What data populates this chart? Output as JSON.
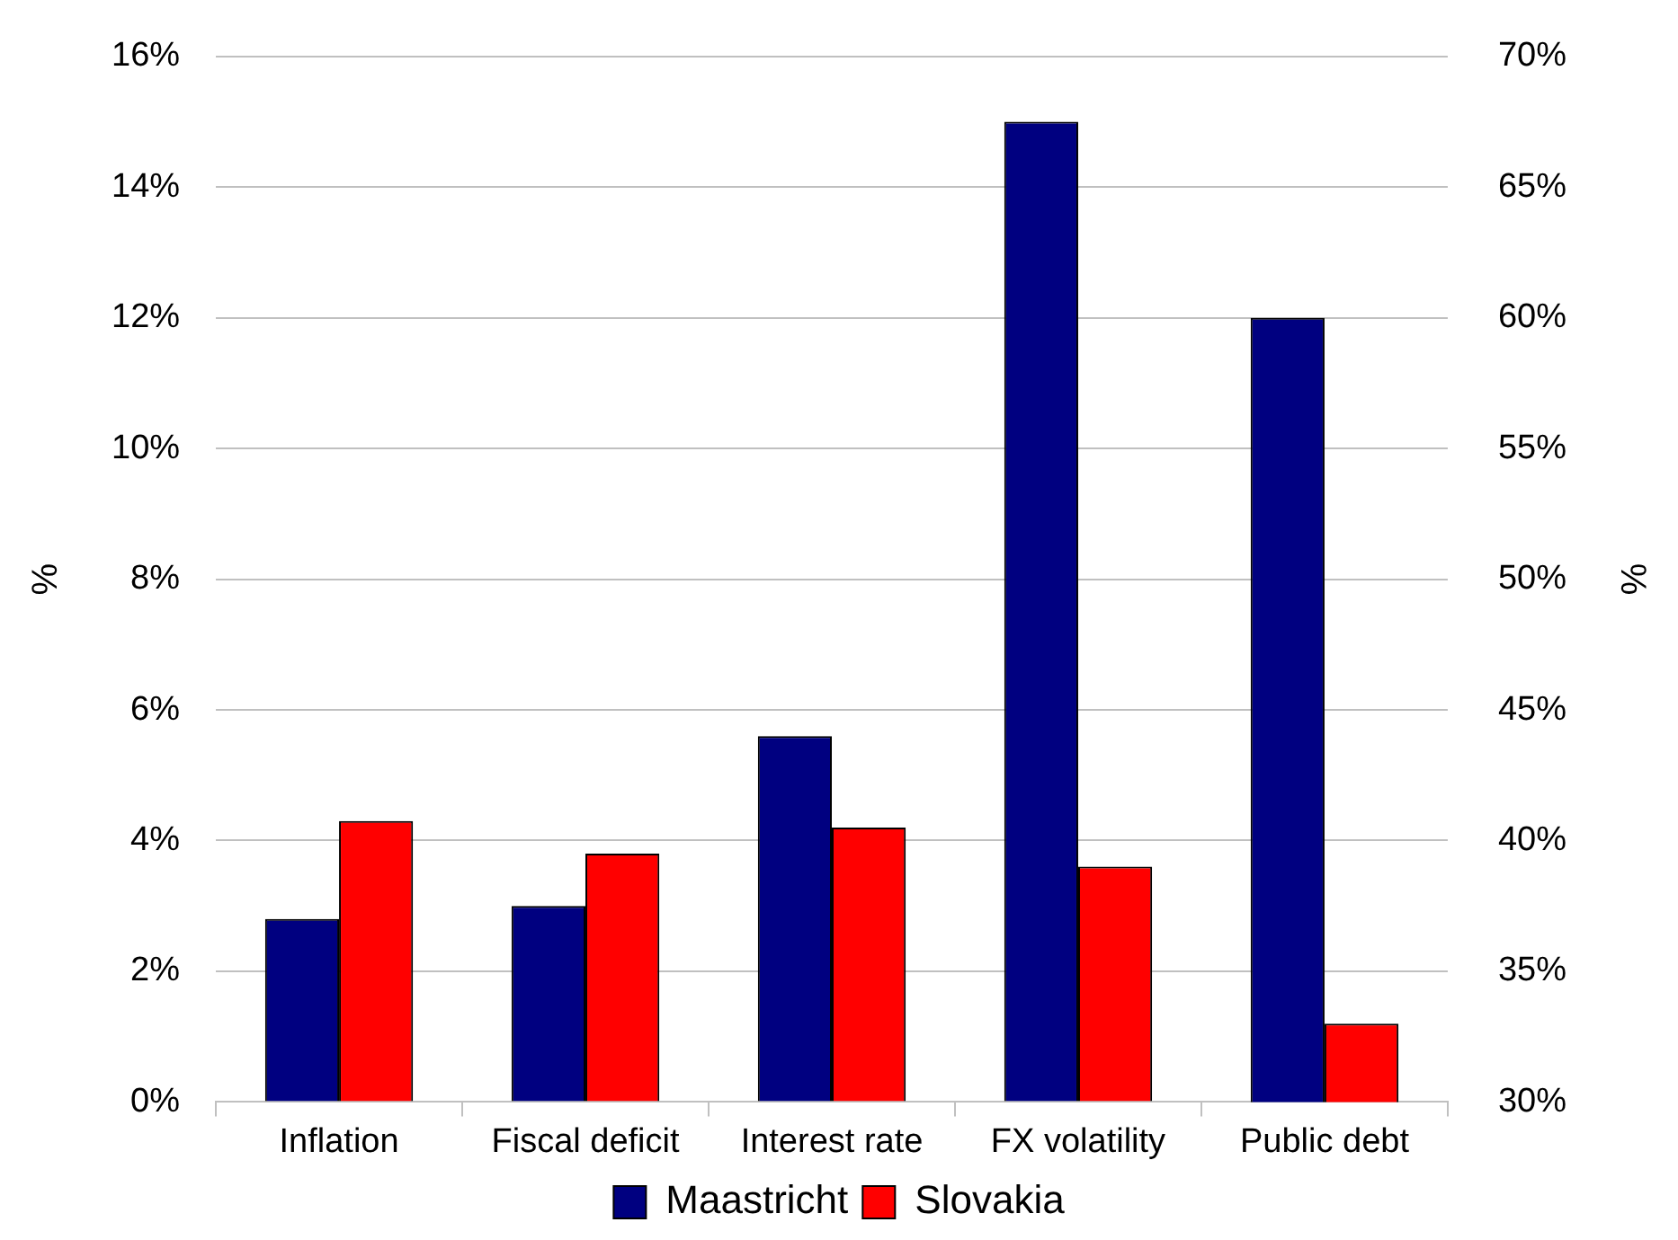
{
  "chart_data": {
    "type": "bar",
    "ylabel": "%",
    "y2label": "%",
    "categories": [
      "Inflation",
      "Fiscal deficit",
      "Interest rate",
      "FX volatility",
      "Public debt"
    ],
    "series": [
      {
        "name": "Maastricht",
        "color": "#000080",
        "values": [
          2.8,
          3.0,
          5.6,
          15.0,
          null
        ]
      },
      {
        "name": "Slovakia",
        "color": "#ff0000",
        "values": [
          4.3,
          3.8,
          4.2,
          3.6,
          null
        ]
      },
      {
        "color": "#000080",
        "axis": "y2",
        "values": [
          null,
          null,
          null,
          null,
          60
        ]
      },
      {
        "color": "#ff0000",
        "axis": "y2",
        "values": [
          null,
          null,
          null,
          null,
          33
        ]
      }
    ],
    "ylim": [
      0,
      16
    ],
    "yticks": [
      {
        "value": 0,
        "label": "0%"
      },
      {
        "value": 2,
        "label": "2%"
      },
      {
        "value": 4,
        "label": "4%"
      },
      {
        "value": 6,
        "label": "6%"
      },
      {
        "value": 8,
        "label": "8%"
      },
      {
        "value": 10,
        "label": "10%"
      },
      {
        "value": 12,
        "label": "12%"
      },
      {
        "value": 14,
        "label": "14%"
      },
      {
        "value": 16,
        "label": "16%"
      }
    ],
    "y2lim": [
      30,
      70
    ],
    "y2ticks": [
      {
        "value": 30,
        "label": "30%"
      },
      {
        "value": 35,
        "label": "35%"
      },
      {
        "value": 40,
        "label": "40%"
      },
      {
        "value": 45,
        "label": "45%"
      },
      {
        "value": 50,
        "label": "50%"
      },
      {
        "value": 55,
        "label": "55%"
      },
      {
        "value": 60,
        "label": "60%"
      },
      {
        "value": 65,
        "label": "65%"
      },
      {
        "value": 70,
        "label": "70%"
      }
    ],
    "grid": "y",
    "legend": "bottom"
  }
}
